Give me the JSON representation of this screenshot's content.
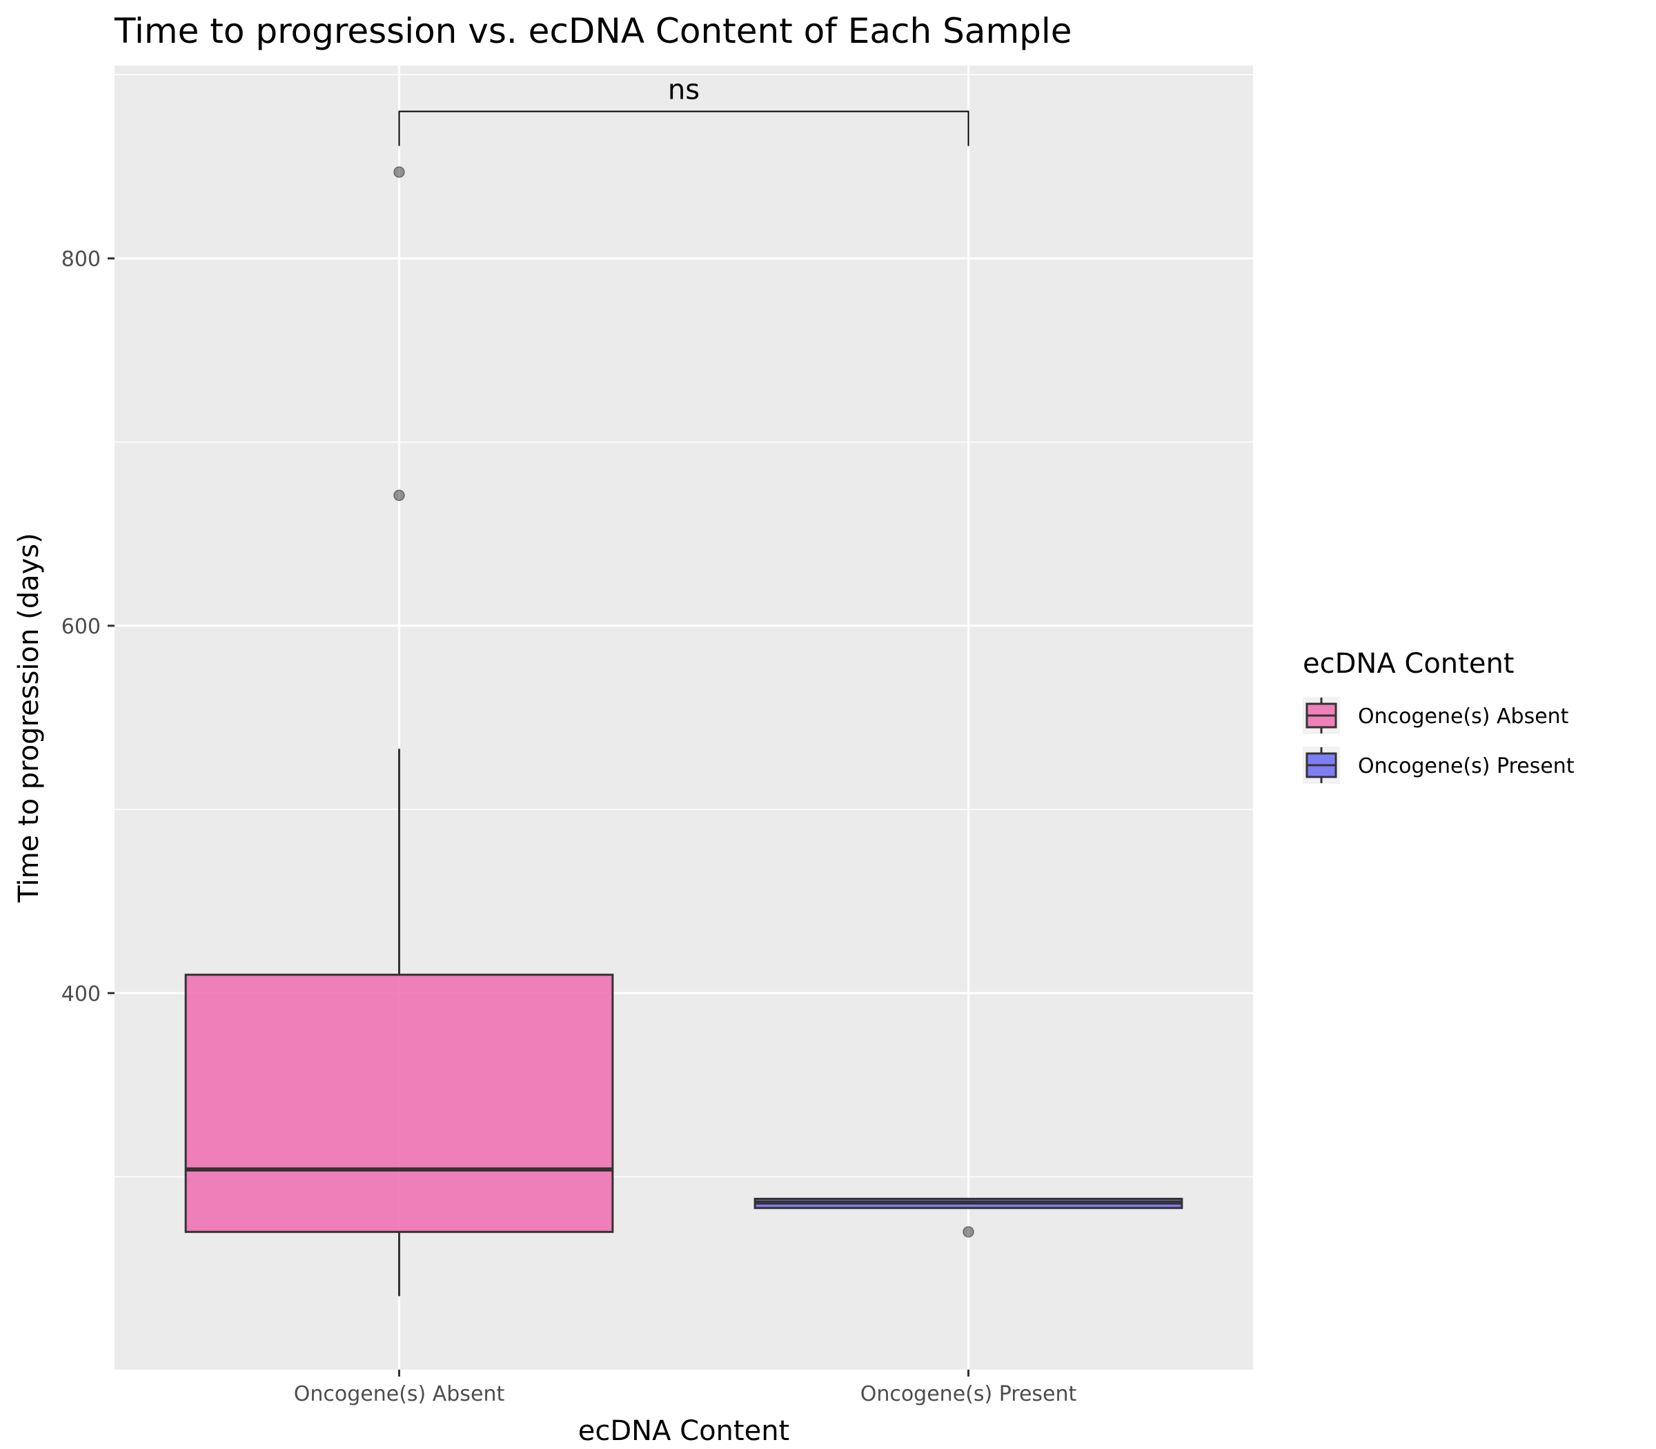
{
  "chart_data": {
    "type": "box",
    "title": "Time to progression vs. ecDNA Content of Each Sample",
    "xlabel": "ecDNA Content",
    "ylabel": "Time to progression (days)",
    "ylim": [
      195,
      905
    ],
    "yticks": [
      400,
      600,
      800
    ],
    "grid": true,
    "categories": [
      "Oncogene(s) Absent",
      "Oncogene(s) Present"
    ],
    "series": [
      {
        "name": "Oncogene(s) Absent",
        "color": "#ee6fb0",
        "whisker_low": 235,
        "q1": 270,
        "median": 304,
        "q3": 410,
        "whisker_high": 533,
        "outliers": [
          671,
          847
        ]
      },
      {
        "name": "Oncogene(s) Present",
        "color": "#6e6cf4",
        "whisker_low": 283,
        "q1": 283,
        "median": 286,
        "q3": 288,
        "whisker_high": 288,
        "outliers": [
          270
        ]
      }
    ],
    "legend": {
      "title": "ecDNA Content",
      "position": "right",
      "items": [
        "Oncogene(s) Absent",
        "Oncogene(s) Present"
      ]
    },
    "annotations": [
      {
        "type": "significance",
        "label": "ns",
        "from": "Oncogene(s) Absent",
        "to": "Oncogene(s) Present",
        "y": 880
      }
    ]
  }
}
